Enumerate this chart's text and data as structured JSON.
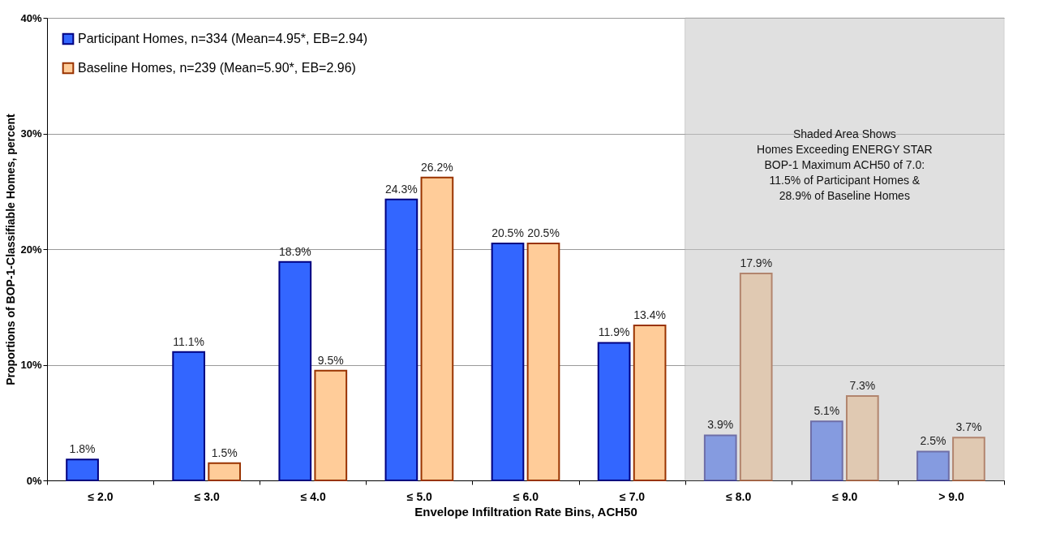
{
  "chart_data": {
    "type": "bar",
    "xlabel": "Envelope Infiltration Rate Bins, ACH50",
    "ylabel": "Proportions of BOP-1-Classifiable Homes, percent",
    "categories": [
      "≤ 2.0",
      "≤ 3.0",
      "≤ 4.0",
      "≤ 5.0",
      "≤ 6.0",
      "≤ 7.0",
      "≤ 8.0",
      "≤ 9.0",
      "> 9.0"
    ],
    "series": [
      {
        "name": "Participant Homes, n=334 (Mean=4.95*, EB=2.94)",
        "color": "#3366ff",
        "values": [
          1.8,
          11.1,
          18.9,
          24.3,
          20.5,
          11.9,
          3.9,
          5.1,
          2.5
        ],
        "value_labels": [
          "1.8%",
          "11.1%",
          "18.9%",
          "24.3%",
          "20.5%",
          "11.9%",
          "3.9%",
          "5.1%",
          "2.5%"
        ]
      },
      {
        "name": "Baseline Homes, n=239 (Mean=5.90*, EB=2.96)",
        "color": "#ffcc99",
        "values": [
          null,
          1.5,
          9.5,
          26.2,
          20.5,
          13.4,
          17.9,
          7.3,
          3.7
        ],
        "value_labels": [
          null,
          "1.5%",
          "9.5%",
          "26.2%",
          "20.5%",
          "13.4%",
          "17.9%",
          "7.3%",
          "3.7%"
        ]
      }
    ],
    "ylim": [
      0,
      40
    ],
    "yticks": [
      {
        "value": 0,
        "label": "0%"
      },
      {
        "value": 10,
        "label": "10%"
      },
      {
        "value": 20,
        "label": "20%"
      },
      {
        "value": 30,
        "label": "30%"
      },
      {
        "value": 40,
        "label": "40%"
      }
    ],
    "grid": "y",
    "legend": "top left",
    "bands": [
      {
        "axis": "x",
        "from": "≤ 8.0",
        "to": "> 9.0",
        "color": "#c8c8c8",
        "label": "Shaded Area Shows\nHomes Exceeding ENERGY STAR\nBOP-1 Maximum ACH50 of 7.0:\n11.5% of Participant Homes &\n28.9% of Baseline Homes"
      }
    ]
  }
}
